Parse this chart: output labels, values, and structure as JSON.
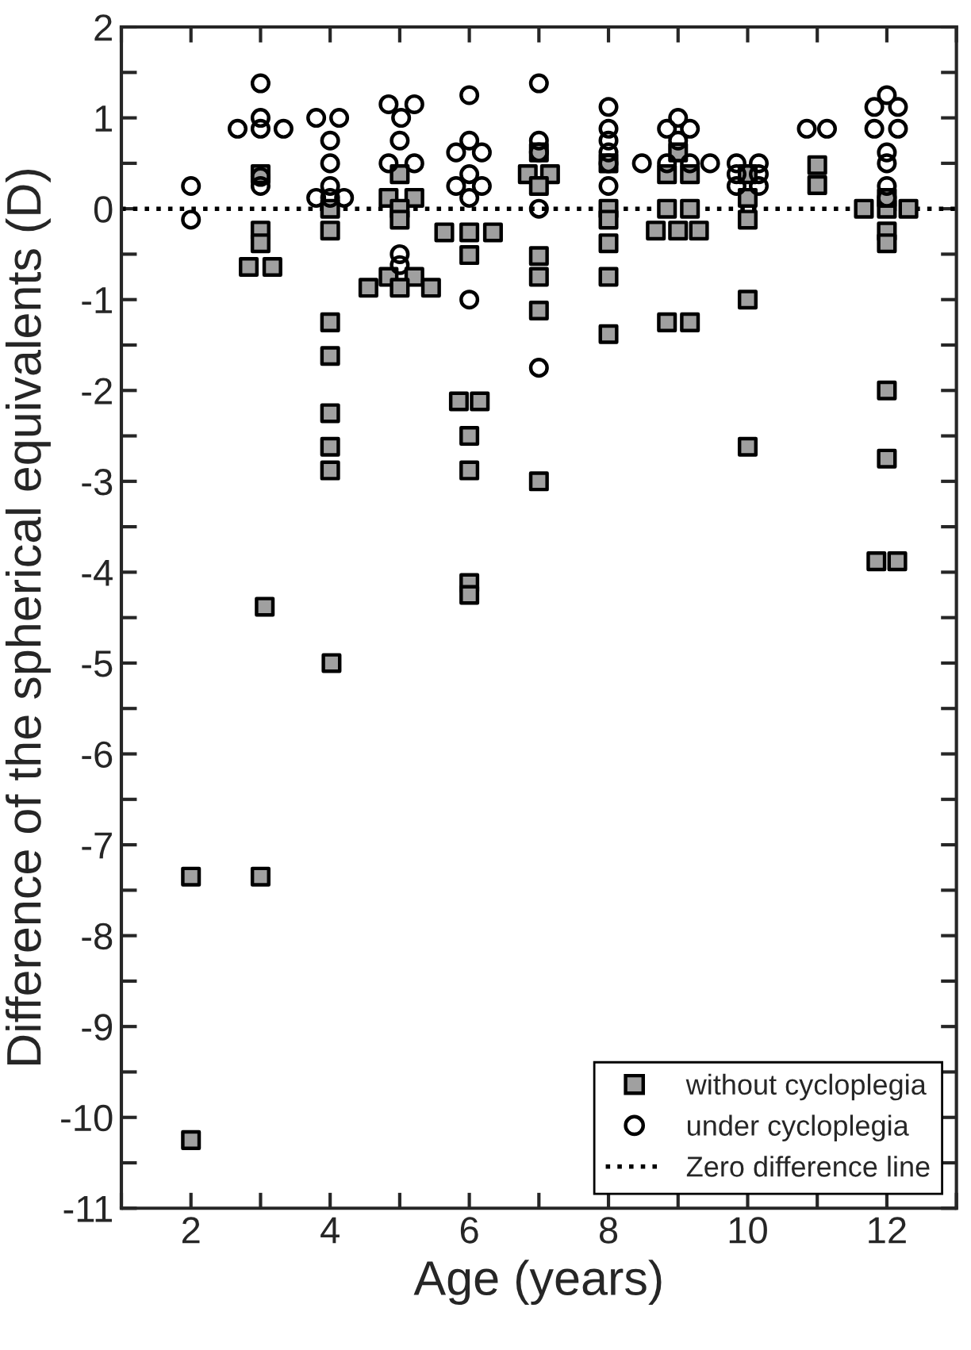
{
  "chart_data": {
    "type": "scatter",
    "xlabel": "Age (years)",
    "ylabel": "Difference of the spherical equivalents (D)",
    "xlim": [
      1,
      13
    ],
    "ylim": [
      -11,
      2
    ],
    "xticks": [
      {
        "value": 1,
        "label": null
      },
      2,
      {
        "value": 3,
        "label": null
      },
      4,
      {
        "value": 5,
        "label": null
      },
      6,
      {
        "value": 7,
        "label": null
      },
      8,
      {
        "value": 9,
        "label": null
      },
      10,
      {
        "value": 11,
        "label": null
      },
      12,
      {
        "value": 13,
        "label": null
      }
    ],
    "yticks": [
      -11,
      {
        "value": -10.5,
        "label": null
      },
      -10,
      {
        "value": -9.5,
        "label": null
      },
      -9,
      {
        "value": -8.5,
        "label": null
      },
      -8,
      {
        "value": -7.5,
        "label": null
      },
      -7,
      {
        "value": -6.5,
        "label": null
      },
      -6,
      {
        "value": -5.5,
        "label": null
      },
      -5,
      {
        "value": -4.5,
        "label": null
      },
      -4,
      {
        "value": -3.5,
        "label": null
      },
      -3,
      {
        "value": -2.5,
        "label": null
      },
      -2,
      {
        "value": -1.5,
        "label": null
      },
      -1,
      {
        "value": -0.5,
        "label": null
      },
      0,
      {
        "value": 0.5,
        "label": null
      },
      1,
      {
        "value": 1.5,
        "label": null
      },
      2
    ],
    "grid": false,
    "legend": "bottom right",
    "series": [
      {
        "name": "without cycloplegia",
        "color": "#a0a0a0",
        "marker": "square",
        "x": [
          2,
          2,
          3,
          3,
          3,
          2.83,
          3.17,
          3.06,
          3,
          4,
          4,
          4,
          4,
          4,
          4,
          4,
          4.02,
          5,
          4.84,
          5.21,
          5,
          5,
          4.84,
          5.21,
          4.55,
          5,
          5.45,
          5.64,
          6,
          6.34,
          6,
          5.85,
          6.15,
          6,
          6,
          6,
          6,
          7,
          6.84,
          7.16,
          7,
          7,
          7,
          7,
          7,
          8,
          8,
          8,
          8,
          8,
          8,
          9,
          8.84,
          9.17,
          8.84,
          9.17,
          8.68,
          9,
          9.3,
          8.84,
          9.17,
          10,
          10,
          10,
          10,
          10,
          11,
          11,
          11.67,
          12,
          12.31,
          12,
          12,
          12,
          12,
          12,
          11.85,
          12.15
        ],
        "values": [
          -7.35,
          -10.25,
          0.38,
          -0.24,
          -0.38,
          -0.64,
          -0.64,
          -4.38,
          -7.35,
          0,
          -0.24,
          -1.25,
          -1.62,
          -2.25,
          -2.62,
          -2.88,
          -5.0,
          0.38,
          0.12,
          0.12,
          0,
          -0.12,
          -0.75,
          -0.75,
          -0.87,
          -0.87,
          -0.87,
          -0.26,
          -0.26,
          -0.26,
          -0.51,
          -2.12,
          -2.12,
          -2.5,
          -2.88,
          -4.12,
          -4.25,
          0.62,
          0.38,
          0.38,
          0.25,
          -0.52,
          -0.75,
          -1.12,
          -3.0,
          0.5,
          0,
          -0.12,
          -0.38,
          -0.75,
          -1.38,
          0.62,
          0.38,
          0.38,
          0,
          0,
          -0.24,
          -0.24,
          -0.24,
          -1.25,
          -1.25,
          0.38,
          0.12,
          -0.12,
          -1.0,
          -2.62,
          0.48,
          0.26,
          0,
          0,
          0,
          0.12,
          -0.25,
          -0.38,
          -2.0,
          -2.75,
          -3.88,
          -3.88
        ]
      },
      {
        "name": "under cycloplegia",
        "color": "#000000",
        "marker": "circle",
        "x": [
          2,
          2,
          3,
          3,
          2.67,
          3,
          3.33,
          3,
          3,
          3.8,
          4.13,
          4,
          4,
          4,
          3.8,
          4,
          4.2,
          4.84,
          5.21,
          5.02,
          5,
          4.84,
          5.21,
          5,
          5,
          6,
          6,
          5.81,
          6.18,
          6,
          5.81,
          6.18,
          6,
          6,
          7,
          7,
          7,
          7,
          7,
          8,
          8,
          8,
          8,
          8,
          8,
          9,
          8.84,
          9.17,
          9,
          8.48,
          9.46,
          8.84,
          9.17,
          9.84,
          10.16,
          9.84,
          10.16,
          9.84,
          10.16,
          10.85,
          11.14,
          12,
          11.82,
          12.16,
          11.82,
          12.16,
          12,
          12,
          12,
          12
        ],
        "values": [
          0.25,
          -0.12,
          1.38,
          1.0,
          0.88,
          0.88,
          0.88,
          0.35,
          0.25,
          1.0,
          1.0,
          0.75,
          0.5,
          0.25,
          0.12,
          0.12,
          0.12,
          1.15,
          1.15,
          1.0,
          0.75,
          0.5,
          0.5,
          -0.5,
          -0.62,
          1.25,
          0.75,
          0.62,
          0.62,
          0.38,
          0.25,
          0.25,
          0.12,
          -1.0,
          1.38,
          0.75,
          0.62,
          0,
          -1.75,
          1.12,
          0.88,
          0.75,
          0.62,
          0.5,
          0.25,
          1.0,
          0.88,
          0.88,
          0.75,
          0.5,
          0.5,
          0.5,
          0.5,
          0.5,
          0.5,
          0.38,
          0.38,
          0.25,
          0.25,
          0.88,
          0.88,
          1.25,
          1.12,
          1.12,
          0.88,
          0.88,
          0.62,
          0.5,
          0.25,
          0.12
        ]
      }
    ],
    "ref_lines": [
      {
        "axis": "y",
        "value": 0,
        "label": "Zero difference line",
        "color": "#000000",
        "line_style": "dotted"
      }
    ]
  }
}
